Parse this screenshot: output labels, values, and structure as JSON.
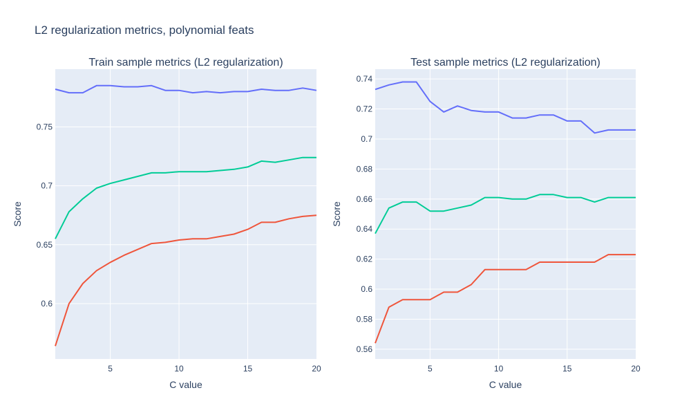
{
  "title": "L2 regularization metrics, polynomial feats",
  "chart_data": [
    {
      "type": "line",
      "title": "Train sample metrics (L2 regularization)",
      "xlabel": "C value",
      "ylabel": "Score",
      "xlim": [
        1,
        20
      ],
      "ylim": [
        0.553,
        0.799
      ],
      "xticks": [
        5,
        10,
        15,
        20
      ],
      "yticks": [
        0.6,
        0.65,
        0.7,
        0.75
      ],
      "ytick_labels": [
        "0.6",
        "0.65",
        "0.7",
        "0.75"
      ],
      "grid": true,
      "x": [
        1,
        2,
        3,
        4,
        5,
        6,
        7,
        8,
        9,
        10,
        11,
        12,
        13,
        14,
        15,
        16,
        17,
        18,
        19,
        20
      ],
      "series": [
        {
          "color": "#636efa",
          "values": [
            0.782,
            0.779,
            0.779,
            0.785,
            0.785,
            0.784,
            0.784,
            0.785,
            0.781,
            0.781,
            0.779,
            0.78,
            0.779,
            0.78,
            0.78,
            0.782,
            0.781,
            0.781,
            0.783,
            0.781
          ]
        },
        {
          "color": "#00cc96",
          "values": [
            0.655,
            0.678,
            0.689,
            0.698,
            0.702,
            0.705,
            0.708,
            0.711,
            0.711,
            0.712,
            0.712,
            0.712,
            0.713,
            0.714,
            0.716,
            0.721,
            0.72,
            0.722,
            0.724,
            0.724
          ]
        },
        {
          "color": "#ef553b",
          "values": [
            0.564,
            0.6,
            0.617,
            0.628,
            0.635,
            0.641,
            0.646,
            0.651,
            0.652,
            0.654,
            0.655,
            0.655,
            0.657,
            0.659,
            0.663,
            0.669,
            0.669,
            0.672,
            0.674,
            0.675
          ]
        }
      ]
    },
    {
      "type": "line",
      "title": "Test sample metrics (L2 regularization)",
      "xlabel": "C value",
      "ylabel": "Score",
      "xlim": [
        1,
        20
      ],
      "ylim": [
        0.5535,
        0.7465
      ],
      "xticks": [
        5,
        10,
        15,
        20
      ],
      "yticks": [
        0.56,
        0.58,
        0.6,
        0.62,
        0.64,
        0.66,
        0.68,
        0.7,
        0.72,
        0.74
      ],
      "ytick_labels": [
        "0.56",
        "0.58",
        "0.6",
        "0.62",
        "0.64",
        "0.66",
        "0.68",
        "0.7",
        "0.72",
        "0.74"
      ],
      "grid": true,
      "x": [
        1,
        2,
        3,
        4,
        5,
        6,
        7,
        8,
        9,
        10,
        11,
        12,
        13,
        14,
        15,
        16,
        17,
        18,
        19,
        20
      ],
      "series": [
        {
          "color": "#636efa",
          "values": [
            0.733,
            0.736,
            0.738,
            0.738,
            0.725,
            0.718,
            0.722,
            0.719,
            0.718,
            0.718,
            0.714,
            0.714,
            0.716,
            0.716,
            0.712,
            0.712,
            0.704,
            0.706,
            0.706,
            0.706
          ]
        },
        {
          "color": "#00cc96",
          "values": [
            0.637,
            0.654,
            0.658,
            0.658,
            0.652,
            0.652,
            0.654,
            0.656,
            0.661,
            0.661,
            0.66,
            0.66,
            0.663,
            0.663,
            0.661,
            0.661,
            0.658,
            0.661,
            0.661,
            0.661
          ]
        },
        {
          "color": "#ef553b",
          "values": [
            0.564,
            0.588,
            0.593,
            0.593,
            0.593,
            0.598,
            0.598,
            0.603,
            0.613,
            0.613,
            0.613,
            0.613,
            0.618,
            0.618,
            0.618,
            0.618,
            0.618,
            0.623,
            0.623,
            0.623
          ]
        }
      ]
    }
  ]
}
